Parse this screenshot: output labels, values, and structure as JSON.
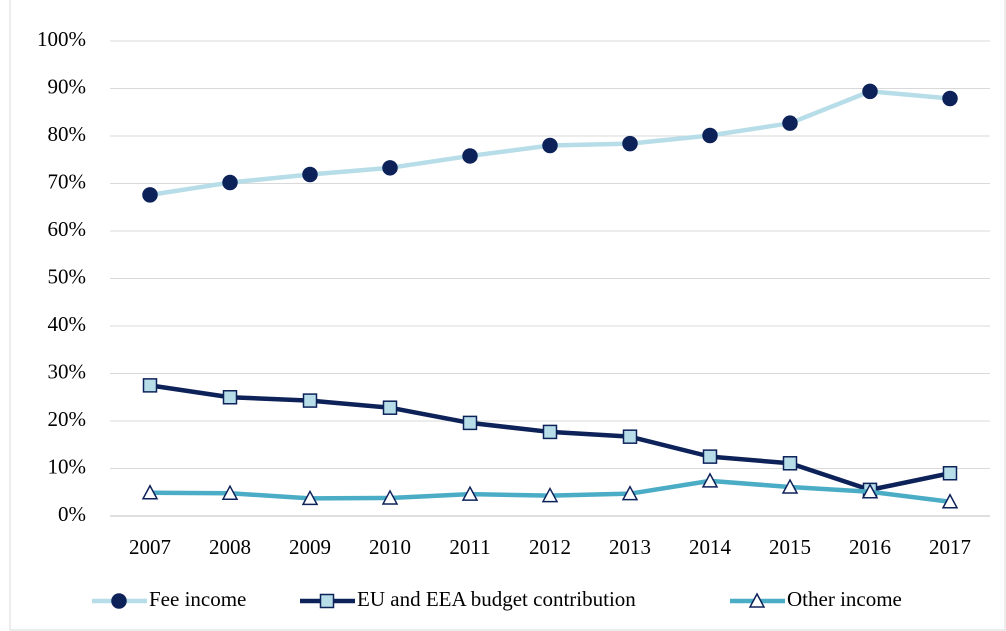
{
  "chart_data": {
    "type": "line",
    "categories": [
      "2007",
      "2008",
      "2009",
      "2010",
      "2011",
      "2012",
      "2013",
      "2014",
      "2015",
      "2016",
      "2017"
    ],
    "series": [
      {
        "name": "Fee income",
        "color": "#b7dde8",
        "marker": "circle",
        "marker_color": "#0d2259",
        "marker_edge": "#0d2259",
        "values": [
          67.6,
          70.2,
          71.9,
          73.3,
          75.8,
          78.0,
          78.4,
          80.1,
          82.7,
          89.4,
          87.9
        ]
      },
      {
        "name": "EU and EEA budget contribution",
        "color": "#0d2259",
        "marker": "square",
        "marker_color": "#b7dde8",
        "marker_edge": "#0d2259",
        "values": [
          27.5,
          25.0,
          24.3,
          22.8,
          19.6,
          17.7,
          16.7,
          12.5,
          11.1,
          5.5,
          9.0
        ]
      },
      {
        "name": "Other income",
        "color": "#4bacc6",
        "marker": "triangle",
        "marker_color": "#ffffff",
        "marker_edge": "#0d2259",
        "values": [
          4.9,
          4.8,
          3.7,
          3.8,
          4.6,
          4.3,
          4.7,
          7.4,
          6.1,
          5.1,
          3.0
        ]
      }
    ],
    "ylim": [
      0,
      100
    ],
    "yticks": [
      {
        "value": 0,
        "label": "0%"
      },
      {
        "value": 10,
        "label": "10%"
      },
      {
        "value": 20,
        "label": "20%"
      },
      {
        "value": 30,
        "label": "30%"
      },
      {
        "value": 40,
        "label": "40%"
      },
      {
        "value": 50,
        "label": "50%"
      },
      {
        "value": 60,
        "label": "60%"
      },
      {
        "value": 70,
        "label": "70%"
      },
      {
        "value": 80,
        "label": "80%"
      },
      {
        "value": 90,
        "label": "90%"
      },
      {
        "value": 100,
        "label": "100%"
      }
    ],
    "grid": true,
    "legend": "bottom"
  }
}
